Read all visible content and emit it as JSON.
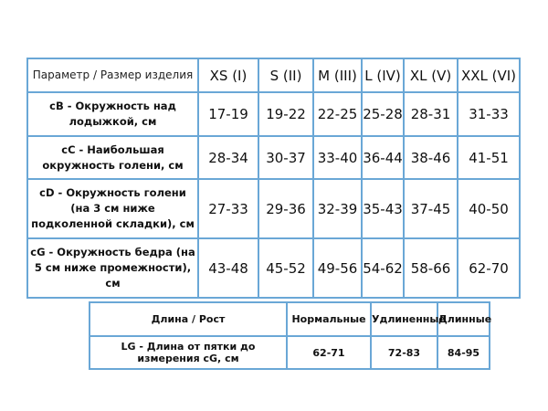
{
  "size_table": {
    "header": [
      "Параметр / Размер изделия",
      "XS (I)",
      "S (II)",
      "M (III)",
      "L (IV)",
      "XL (V)",
      "XXL (VI)"
    ],
    "rows": [
      {
        "param": "cB - Окружность над лодыжкой, см",
        "values": [
          "17-19",
          "19-22",
          "22-25",
          "25-28",
          "28-31",
          "31-33"
        ]
      },
      {
        "param": "cC - Наибольшая окружность голени, см",
        "values": [
          "28-34",
          "30-37",
          "33-40",
          "36-44",
          "38-46",
          "41-51"
        ]
      },
      {
        "param": "cD - Окружность голени (на 3 см ниже подколенной складки), см",
        "values": [
          "27-33",
          "29-36",
          "32-39",
          "35-43",
          "37-45",
          "40-50"
        ]
      },
      {
        "param": "cG - Окружность бедра (на 5 см ниже промежности), см",
        "values": [
          "43-48",
          "45-52",
          "49-56",
          "54-62",
          "58-66",
          "62-70"
        ]
      }
    ]
  },
  "length_table": {
    "header": [
      "Длина / Рост",
      "Нормальные",
      "Удлиненные",
      "Длинные"
    ],
    "rows": [
      {
        "param": "LG - Длина от пятки до измерения cG, см",
        "values": [
          "62-71",
          "72-83",
          "84-95"
        ]
      }
    ]
  },
  "colors": {
    "border": "#6aa7d6"
  }
}
